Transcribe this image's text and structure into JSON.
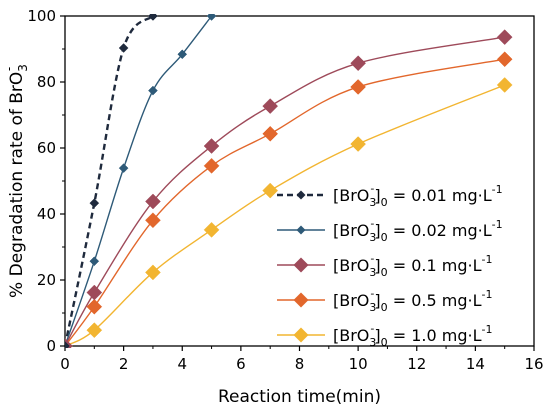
{
  "chart_data": {
    "type": "line",
    "xlabel": "Reaction time(min)",
    "ylabel_parts": {
      "prefix": "% Degradation rate of BrO",
      "sub": "3",
      "sup": "-"
    },
    "xlim": [
      0,
      16
    ],
    "ylim": [
      0,
      100
    ],
    "xticks": [
      0,
      2,
      4,
      6,
      8,
      10,
      12,
      14,
      16
    ],
    "yticks": [
      0,
      20,
      40,
      60,
      80,
      100
    ],
    "grid": false,
    "legend_position": "bottom-right",
    "series": [
      {
        "legend": {
          "bro": "[BrO",
          "sub": "3",
          "sup": "-",
          "bracket": "]",
          "sub0": "0",
          "eq": " = 0.01 mg·L",
          "sup1": "-1"
        },
        "color": "#1f2a3d",
        "marker": "small-diamond",
        "dashed": true,
        "x": [
          0,
          1,
          2,
          3
        ],
        "y": [
          0,
          43.3,
          90.3,
          100
        ]
      },
      {
        "legend": {
          "bro": "[BrO",
          "sub": "3",
          "sup": "-",
          "bracket": "]",
          "sub0": "0",
          "eq": " = 0.02 mg·L",
          "sup1": "-1"
        },
        "color": "#2e5a78",
        "marker": "small-diamond",
        "dashed": false,
        "x": [
          0,
          1,
          2,
          3,
          4,
          5
        ],
        "y": [
          0,
          25.7,
          53.9,
          77.4,
          88.4,
          100
        ]
      },
      {
        "legend": {
          "bro": "[BrO",
          "sub": "3",
          "sup": "-",
          "bracket": "]",
          "sub0": "0",
          "eq": " =   0.1 mg·L",
          "sup1": "-1"
        },
        "color": "#9e4a5a",
        "marker": "diamond",
        "dashed": false,
        "x": [
          0,
          1,
          3,
          5,
          7,
          10,
          15
        ],
        "y": [
          0,
          16.2,
          43.8,
          60.6,
          72.7,
          85.7,
          93.6
        ]
      },
      {
        "legend": {
          "bro": "[BrO",
          "sub": "3",
          "sup": "-",
          "bracket": "]",
          "sub0": "0",
          "eq": " =   0.5 mg·L",
          "sup1": "-1"
        },
        "color": "#e2672c",
        "marker": "diamond",
        "dashed": false,
        "x": [
          0,
          1,
          3,
          5,
          7,
          10,
          15
        ],
        "y": [
          0,
          11.9,
          38.1,
          54.6,
          64.3,
          78.5,
          86.9
        ]
      },
      {
        "legend": {
          "bro": "[BrO",
          "sub": "3",
          "sup": "-",
          "bracket": "]",
          "sub0": "0",
          "eq": " =   1.0 mg·L",
          "sup1": "-1"
        },
        "color": "#f2b531",
        "marker": "diamond",
        "dashed": false,
        "x": [
          0,
          1,
          3,
          5,
          7,
          10,
          15
        ],
        "y": [
          0,
          4.8,
          22.3,
          35.2,
          47.1,
          61.2,
          79.1
        ]
      }
    ]
  }
}
